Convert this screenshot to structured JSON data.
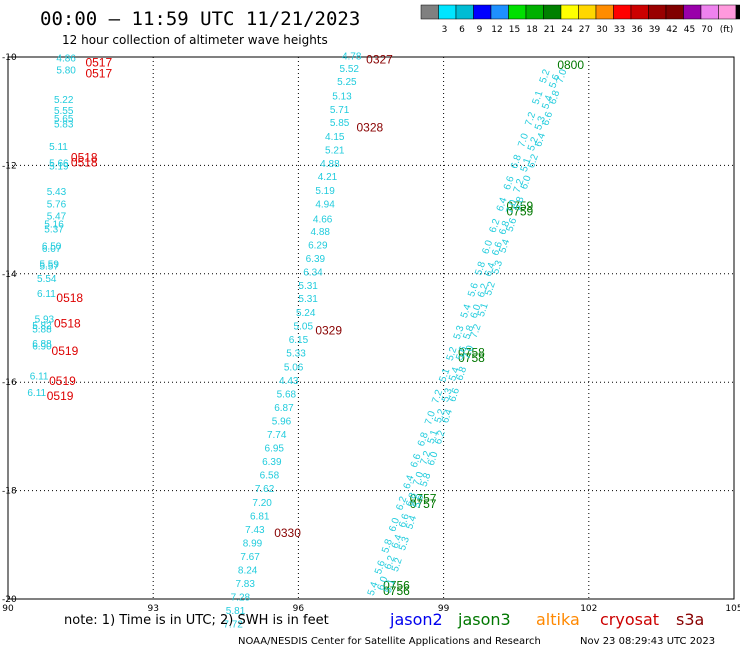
{
  "header": {
    "title": "00:00 – 11:59 UTC 11/21/2023",
    "subtitle": "12 hour collection of altimeter wave heights"
  },
  "colorbar": {
    "labels": [
      "3",
      "6",
      "9",
      "12",
      "15",
      "18",
      "21",
      "24",
      "27",
      "30",
      "33",
      "36",
      "39",
      "42",
      "45",
      "70"
    ],
    "unit": "(ft)",
    "colors": [
      "#808080",
      "#00e5ff",
      "#00bcd4",
      "#0000ff",
      "#1e90ff",
      "#00e000",
      "#00b000",
      "#008000",
      "#ffff00",
      "#ffd700",
      "#ff8c00",
      "#ff0000",
      "#cc0000",
      "#990000",
      "#800000",
      "#9900aa",
      "#ee82ee",
      "#ff99dd",
      "#000000"
    ]
  },
  "footer": {
    "note": "note: 1) Time is in UTC; 2) SWH is in feet",
    "satellites": [
      {
        "name": "jason2",
        "color": "#0000ee"
      },
      {
        "name": "jason3",
        "color": "#007700"
      },
      {
        "name": "altika",
        "color": "#ff8800"
      },
      {
        "name": "cryosat",
        "color": "#cc0000"
      },
      {
        "name": "s3a",
        "color": "#880000"
      }
    ],
    "credit": "NOAA/NESDIS Center for Satellite Applications and Research",
    "timestamp": "Nov 23 08:29:43 UTC 2023"
  },
  "chart_data": {
    "type": "scatter",
    "xlim": [
      90,
      105
    ],
    "ylim": [
      -20,
      -10
    ],
    "x_ticks": [
      "90",
      "93",
      "96",
      "99",
      "102",
      "105"
    ],
    "y_ticks": [
      "-10",
      "-12",
      "-14",
      "-16",
      "-18",
      "-20"
    ],
    "grid": true,
    "value_color": "#22ccdd",
    "tracks": [
      {
        "id": "cryosat-west",
        "label_color": "#dd0000",
        "points": [
          {
            "x": 91.0,
            "y": -10.08,
            "v": "4.86"
          },
          {
            "x": 91.0,
            "y": -10.3,
            "v": "5.80"
          },
          {
            "x": 90.95,
            "y": -10.85,
            "v": "5.22"
          },
          {
            "x": 90.95,
            "y": -11.05,
            "v": "5.55"
          },
          {
            "x": 90.95,
            "y": -11.2,
            "v": "5.65"
          },
          {
            "x": 90.95,
            "y": -11.3,
            "v": "5.83"
          },
          {
            "x": 90.85,
            "y": -11.72,
            "v": "5.11"
          },
          {
            "x": 90.85,
            "y": -12.02,
            "v": "5.66"
          },
          {
            "x": 90.85,
            "y": -12.08,
            "v": "5.19"
          },
          {
            "x": 90.8,
            "y": -12.55,
            "v": "5.43"
          },
          {
            "x": 90.8,
            "y": -12.78,
            "v": "5.76"
          },
          {
            "x": 90.8,
            "y": -13.0,
            "v": "5.47"
          },
          {
            "x": 90.75,
            "y": -13.15,
            "v": "5.16"
          },
          {
            "x": 90.75,
            "y": -13.24,
            "v": "5.37"
          },
          {
            "x": 90.7,
            "y": -13.55,
            "v": "6.50"
          },
          {
            "x": 90.7,
            "y": -13.6,
            "v": "6.07"
          },
          {
            "x": 90.65,
            "y": -13.88,
            "v": "5.59"
          },
          {
            "x": 90.65,
            "y": -13.92,
            "v": "5.57"
          },
          {
            "x": 90.6,
            "y": -14.15,
            "v": "5.54"
          },
          {
            "x": 90.6,
            "y": -14.43,
            "v": "6.11"
          },
          {
            "x": 90.55,
            "y": -14.9,
            "v": "5.93"
          },
          {
            "x": 90.5,
            "y": -15.02,
            "v": "5.82"
          },
          {
            "x": 90.5,
            "y": -15.08,
            "v": "5.88"
          },
          {
            "x": 90.5,
            "y": -15.35,
            "v": "6.88"
          },
          {
            "x": 90.5,
            "y": -15.4,
            "v": "6.90"
          },
          {
            "x": 90.45,
            "y": -15.95,
            "v": "6.11"
          },
          {
            "x": 90.4,
            "y": -16.25,
            "v": "6.11"
          }
        ],
        "time_labels": [
          {
            "x": 91.6,
            "y": -10.1,
            "t": "0517"
          },
          {
            "x": 91.6,
            "y": -10.3,
            "t": "0517"
          },
          {
            "x": 91.3,
            "y": -11.85,
            "t": "0518"
          },
          {
            "x": 91.3,
            "y": -11.95,
            "t": "0518"
          },
          {
            "x": 91.0,
            "y": -14.45,
            "t": "0518"
          },
          {
            "x": 90.95,
            "y": -14.92,
            "t": "0518"
          },
          {
            "x": 90.9,
            "y": -15.42,
            "t": "0519"
          },
          {
            "x": 90.85,
            "y": -15.98,
            "t": "0519"
          },
          {
            "x": 90.8,
            "y": -16.25,
            "t": "0519"
          }
        ]
      },
      {
        "id": "s3a-middle",
        "label_color": "#880000",
        "points": [
          {
            "x": 96.9,
            "y": -10.05,
            "v": "4.78"
          },
          {
            "x": 96.85,
            "y": -10.28,
            "v": "5.52"
          },
          {
            "x": 96.8,
            "y": -10.52,
            "v": "5.25"
          },
          {
            "x": 96.7,
            "y": -10.78,
            "v": "5.13"
          },
          {
            "x": 96.65,
            "y": -11.03,
            "v": "5.71"
          },
          {
            "x": 96.65,
            "y": -11.27,
            "v": "5.85"
          },
          {
            "x": 96.55,
            "y": -11.53,
            "v": "4.15"
          },
          {
            "x": 96.55,
            "y": -11.78,
            "v": "5.21"
          },
          {
            "x": 96.45,
            "y": -12.03,
            "v": "4.88"
          },
          {
            "x": 96.4,
            "y": -12.27,
            "v": "4.21"
          },
          {
            "x": 96.35,
            "y": -12.53,
            "v": "5.19"
          },
          {
            "x": 96.35,
            "y": -12.78,
            "v": "4.94"
          },
          {
            "x": 96.3,
            "y": -13.05,
            "v": "4.66"
          },
          {
            "x": 96.25,
            "y": -13.28,
            "v": "4.88"
          },
          {
            "x": 96.2,
            "y": -13.53,
            "v": "6.29"
          },
          {
            "x": 96.15,
            "y": -13.78,
            "v": "6.39"
          },
          {
            "x": 96.1,
            "y": -14.03,
            "v": "6.34"
          },
          {
            "x": 96.0,
            "y": -14.28,
            "v": "5.31"
          },
          {
            "x": 96.0,
            "y": -14.52,
            "v": "5.31"
          },
          {
            "x": 95.95,
            "y": -14.78,
            "v": "5.24"
          },
          {
            "x": 95.9,
            "y": -15.03,
            "v": "5.05"
          },
          {
            "x": 95.8,
            "y": -15.28,
            "v": "6.15"
          },
          {
            "x": 95.75,
            "y": -15.53,
            "v": "5.33"
          },
          {
            "x": 95.7,
            "y": -15.78,
            "v": "5.06"
          },
          {
            "x": 95.6,
            "y": -16.03,
            "v": "4.43"
          },
          {
            "x": 95.55,
            "y": -16.28,
            "v": "5.68"
          },
          {
            "x": 95.5,
            "y": -16.53,
            "v": "6.87"
          },
          {
            "x": 95.45,
            "y": -16.78,
            "v": "5.96"
          },
          {
            "x": 95.35,
            "y": -17.03,
            "v": "7.74"
          },
          {
            "x": 95.3,
            "y": -17.28,
            "v": "6.95"
          },
          {
            "x": 95.25,
            "y": -17.53,
            "v": "6.39"
          },
          {
            "x": 95.2,
            "y": -17.78,
            "v": "6.58"
          },
          {
            "x": 95.1,
            "y": -18.03,
            "v": "7.62"
          },
          {
            "x": 95.05,
            "y": -18.28,
            "v": "7.20"
          },
          {
            "x": 95.0,
            "y": -18.53,
            "v": "6.81"
          },
          {
            "x": 94.9,
            "y": -18.78,
            "v": "7.43"
          },
          {
            "x": 94.85,
            "y": -19.03,
            "v": "8.99"
          },
          {
            "x": 94.8,
            "y": -19.28,
            "v": "7.67"
          },
          {
            "x": 94.75,
            "y": -19.53,
            "v": "8.24"
          },
          {
            "x": 94.7,
            "y": -19.78,
            "v": "7.83"
          },
          {
            "x": 94.6,
            "y": -20.03,
            "v": "7.28"
          },
          {
            "x": 94.5,
            "y": -20.28,
            "v": "5.81"
          },
          {
            "x": 94.45,
            "y": -20.53,
            "v": "7.72"
          }
        ],
        "time_labels": [
          {
            "x": 97.4,
            "y": -10.05,
            "t": "0327"
          },
          {
            "x": 97.2,
            "y": -11.3,
            "t": "0328"
          },
          {
            "x": 96.35,
            "y": -15.05,
            "t": "0329"
          },
          {
            "x": 95.5,
            "y": -18.78,
            "t": "0330"
          }
        ]
      },
      {
        "id": "jason3-east",
        "label_color": "#007700",
        "points": [],
        "time_labels": [
          {
            "x": 101.35,
            "y": -10.15,
            "t": "0800"
          },
          {
            "x": 100.3,
            "y": -12.75,
            "t": "0759"
          },
          {
            "x": 100.3,
            "y": -12.85,
            "t": "0759"
          },
          {
            "x": 99.3,
            "y": -15.45,
            "t": "0758"
          },
          {
            "x": 99.3,
            "y": -15.55,
            "t": "0758"
          },
          {
            "x": 98.3,
            "y": -18.15,
            "t": "0757"
          },
          {
            "x": 98.3,
            "y": -18.25,
            "t": "0757"
          },
          {
            "x": 97.75,
            "y": -19.75,
            "t": "0756"
          },
          {
            "x": 97.75,
            "y": -19.85,
            "t": "0756"
          }
        ]
      }
    ],
    "dense_track_values": [
      "5.1",
      "5.2",
      "5.3",
      "5.4",
      "5.6",
      "5.8",
      "6.0",
      "6.2",
      "6.4",
      "6.6",
      "6.8",
      "7.0",
      "7.2"
    ]
  }
}
